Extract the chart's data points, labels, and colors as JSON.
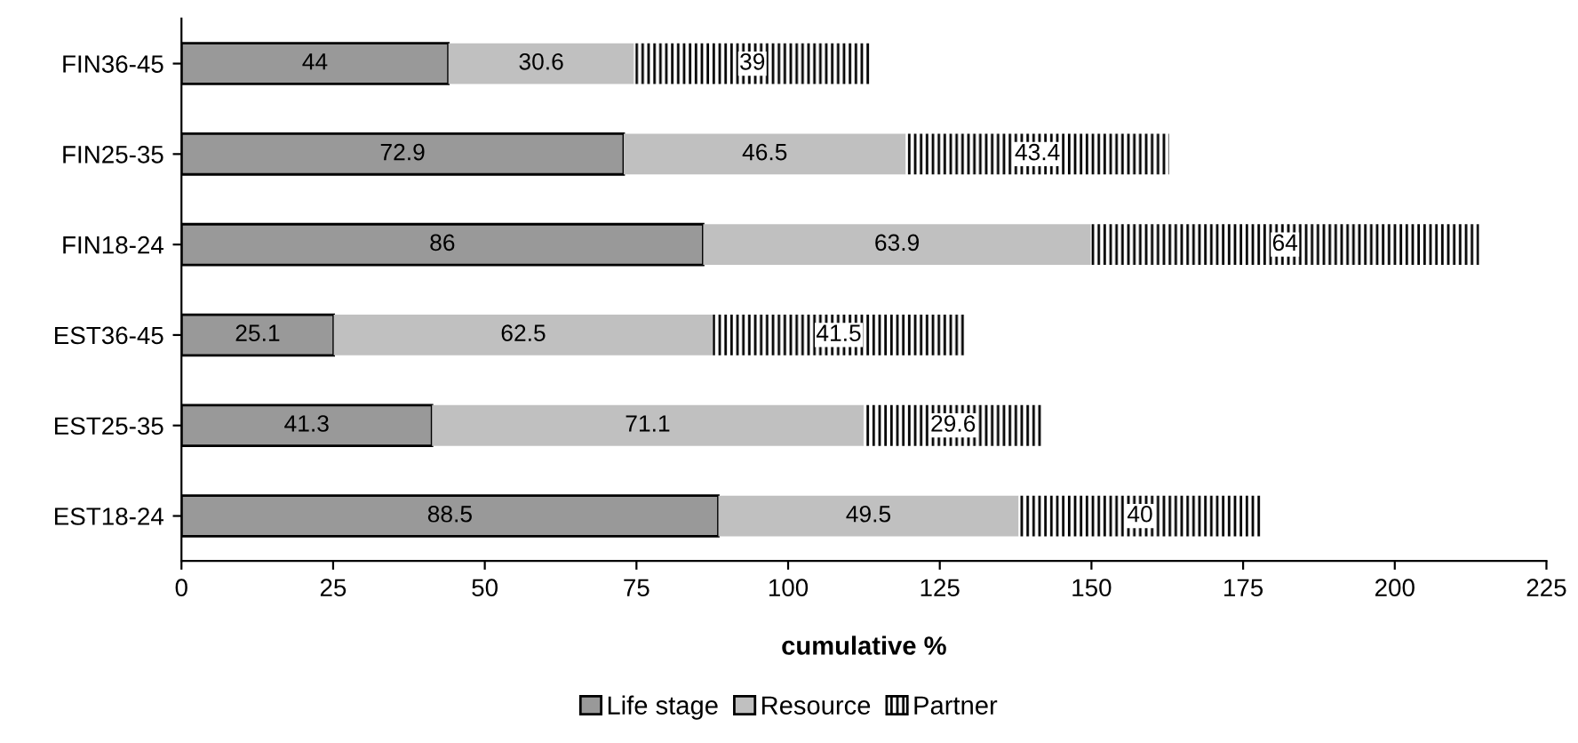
{
  "chart_data": {
    "type": "bar",
    "orientation": "horizontal",
    "stacked": true,
    "xlabel": "cumulative %",
    "categories": [
      "FIN36-45",
      "FIN25-35",
      "FIN18-24",
      "EST36-45",
      "EST25-35",
      "EST18-24"
    ],
    "series": [
      {
        "name": "Life stage",
        "color": "#999999",
        "values": [
          44,
          72.9,
          86,
          25.1,
          41.3,
          88.5
        ]
      },
      {
        "name": "Resource",
        "color": "#c0c0c0",
        "values": [
          30.6,
          46.5,
          63.9,
          62.5,
          71.1,
          49.5
        ]
      },
      {
        "name": "Partner",
        "color": "#000000",
        "values": [
          39,
          43.4,
          64,
          41.5,
          29.6,
          40
        ]
      }
    ],
    "xlim": [
      0,
      225
    ],
    "xticks": [
      0,
      25,
      50,
      75,
      100,
      125,
      150,
      175,
      200,
      225
    ],
    "grid": false,
    "legend": "bottom",
    "data_labels": true
  }
}
